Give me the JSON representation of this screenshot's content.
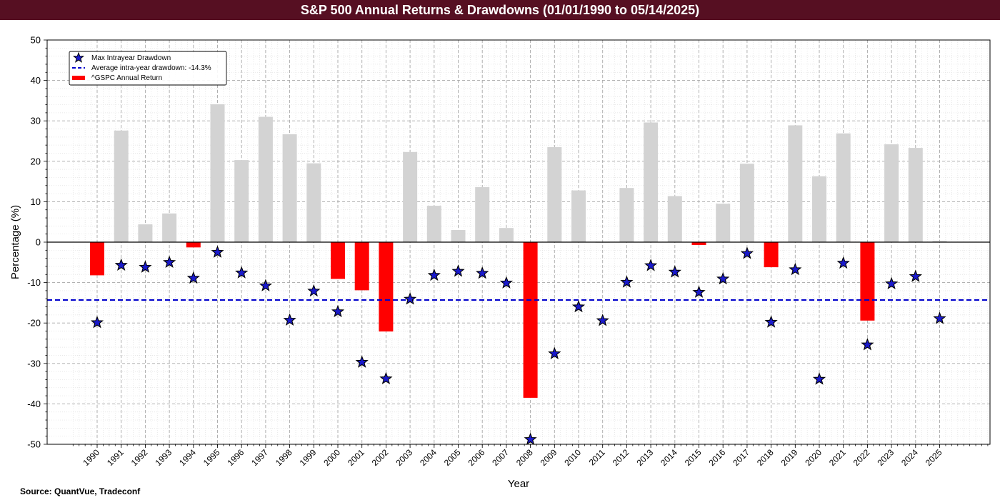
{
  "title": "S&P 500 Annual Returns & Drawdowns (01/01/1990 to 05/14/2025)",
  "source": "Source: QuantVue, Tradeconf",
  "colors": {
    "title_bg": "#560f22",
    "positive_bar": "#d3d3d3",
    "negative_bar": "#ff0000",
    "star_fill": "#1a1acc",
    "avg_line": "#0000cc"
  },
  "chart_data": {
    "type": "bar",
    "xlabel": "Year",
    "ylabel": "Percentage (%)",
    "ylim": [
      -50,
      50
    ],
    "yticks": [
      -50,
      -40,
      -30,
      -20,
      -10,
      0,
      10,
      20,
      30,
      40,
      50
    ],
    "grid": true,
    "legend_position": "top-left",
    "categories": [
      "1990",
      "1991",
      "1992",
      "1993",
      "1994",
      "1995",
      "1996",
      "1997",
      "1998",
      "1999",
      "2000",
      "2001",
      "2002",
      "2003",
      "2004",
      "2005",
      "2006",
      "2007",
      "2008",
      "2009",
      "2010",
      "2011",
      "2012",
      "2013",
      "2014",
      "2015",
      "2016",
      "2017",
      "2018",
      "2019",
      "2020",
      "2021",
      "2022",
      "2023",
      "2024",
      "2025"
    ],
    "series": [
      {
        "name": "^GSPC Annual Return",
        "kind": "bar",
        "values": [
          -8.2,
          27.6,
          4.4,
          7.1,
          -1.3,
          34.1,
          20.3,
          31.0,
          26.7,
          19.5,
          -9.1,
          -11.9,
          -22.1,
          22.3,
          9.0,
          3.0,
          13.6,
          3.5,
          -38.5,
          23.5,
          12.8,
          0.0,
          13.4,
          29.6,
          11.4,
          -0.7,
          9.5,
          19.4,
          -6.2,
          28.9,
          16.3,
          26.9,
          -19.4,
          24.2,
          23.3,
          0.3
        ]
      },
      {
        "name": "Max Intrayear Drawdown",
        "kind": "scatter",
        "values": [
          -19.9,
          -5.7,
          -6.2,
          -5.0,
          -8.9,
          -2.5,
          -7.6,
          -10.8,
          -19.3,
          -12.1,
          -17.2,
          -29.7,
          -33.8,
          -14.1,
          -8.2,
          -7.2,
          -7.7,
          -10.1,
          -48.8,
          -27.6,
          -16.0,
          -19.4,
          -9.9,
          -5.8,
          -7.4,
          -12.4,
          -9.1,
          -2.8,
          -19.8,
          -6.8,
          -33.9,
          -5.2,
          -25.4,
          -10.3,
          -8.5,
          -18.9
        ]
      }
    ],
    "average_line": {
      "label": "Average intra-year drawdown: -14.3%",
      "value": -14.3
    }
  }
}
